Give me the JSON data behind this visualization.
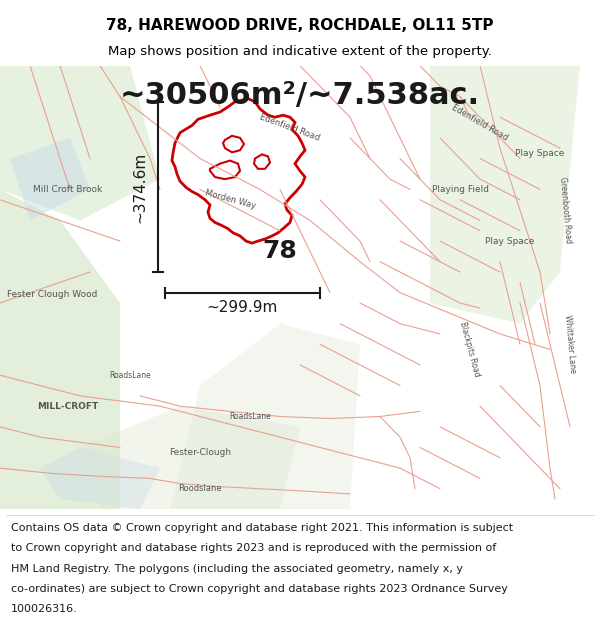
{
  "title_line1": "78, HAREWOOD DRIVE, ROCHDALE, OL11 5TP",
  "title_line2": "Map shows position and indicative extent of the property.",
  "area_text": "~30506m²/~7.538ac.",
  "label_78": "78",
  "width_label": "~299.9m",
  "height_label": "~374.6m",
  "footer_lines": [
    "Contains OS data © Crown copyright and database right 2021. This information is subject",
    "to Crown copyright and database rights 2023 and is reproduced with the permission of",
    "HM Land Registry. The polygons (including the associated geometry, namely x, y",
    "co-ordinates) are subject to Crown copyright and database rights 2023 Ordnance Survey",
    "100026316."
  ],
  "title_fontsize": 11,
  "subtitle_fontsize": 9.5,
  "area_fontsize": 22,
  "label_fontsize": 18,
  "dim_fontsize": 11,
  "footer_fontsize": 8,
  "map_bg_color": "#f2ede8",
  "title_area_bg": "#ffffff",
  "footer_area_bg": "#ffffff",
  "dim_line_color": "#1a1a1a",
  "property_outline_color": "#cc0000",
  "road_color": "#e8a090",
  "green_color": "#d8e8cc",
  "water_color": "#c8dce8"
}
